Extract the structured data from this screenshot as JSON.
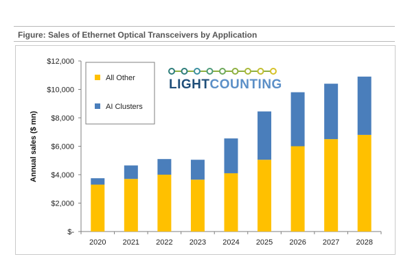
{
  "figure": {
    "title": "Figure: Sales of Ethernet Optical Transceivers by Application"
  },
  "logo": {
    "text_light": "LIGHT",
    "text_counting": "COUNTING"
  },
  "colors": {
    "all_other": "#FFC000",
    "ai_clusters": "#4A7EBB",
    "axis": "#7f7f7f",
    "logo_dots": [
      "#2E7D7A",
      "#2E7D7A",
      "#3A8FA0",
      "#4D9A78",
      "#6DA85A",
      "#8EB040",
      "#A8B838",
      "#C2BE30",
      "#D6C228"
    ]
  },
  "chart_data": {
    "type": "bar",
    "stacked": true,
    "title": "Sales of Ethernet Optical Transceivers by Application",
    "xlabel": "",
    "ylabel": "Annual sales ($ mn)",
    "ylim": [
      0,
      12000
    ],
    "yticks": [
      0,
      2000,
      4000,
      6000,
      8000,
      10000,
      12000
    ],
    "ytick_labels": [
      "$-",
      "$2,000",
      "$4,000",
      "$6,000",
      "$8,000",
      "$10,000",
      "$12,000"
    ],
    "categories": [
      "2020",
      "2021",
      "2022",
      "2023",
      "2024",
      "2025",
      "2026",
      "2027",
      "2028"
    ],
    "series": [
      {
        "name": "All Other",
        "values": [
          3300,
          3700,
          4000,
          3650,
          4100,
          5050,
          6000,
          6500,
          6800
        ]
      },
      {
        "name": "AI Clusters",
        "values": [
          450,
          950,
          1100,
          1400,
          2450,
          3400,
          3800,
          3900,
          4100
        ]
      }
    ],
    "legend": [
      "All Other",
      "AI Clusters"
    ],
    "legend_position": "top-left",
    "grid": false
  }
}
